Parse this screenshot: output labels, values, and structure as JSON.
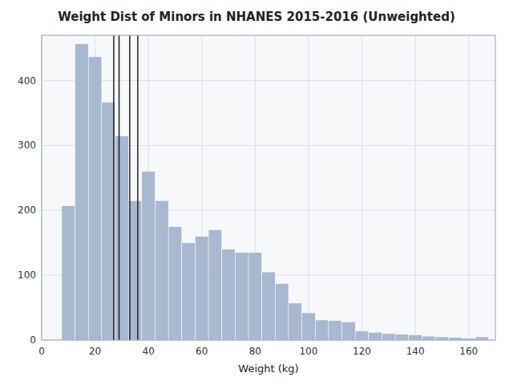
{
  "chart_data": {
    "type": "histogram",
    "title": "Weight Dist of Minors in NHANES 2015-2016 (Unweighted)",
    "xlabel": "Weight (kg)",
    "bins": [
      2.5,
      7.5,
      12.5,
      17.5,
      22.5,
      27.5,
      32.5,
      37.5,
      42.5,
      47.5,
      52.5,
      57.5,
      62.5,
      67.5,
      72.5,
      77.5,
      82.5,
      87.5,
      92.5,
      97.5,
      102.5,
      107.5,
      112.5,
      117.5,
      122.5,
      127.5,
      132.5,
      137.5,
      142.5,
      147.5,
      152.5,
      157.5,
      162.5,
      167.5
    ],
    "values": [
      0,
      207,
      457,
      437,
      367,
      315,
      215,
      260,
      215,
      175,
      150,
      160,
      170,
      140,
      135,
      135,
      105,
      87,
      57,
      42,
      31,
      30,
      28,
      14,
      12,
      10,
      9,
      8,
      6,
      5,
      4,
      3,
      5
    ],
    "color": "#a8b8d0",
    "vlines": [
      27,
      29,
      33,
      36
    ],
    "xlim": [
      0,
      170
    ],
    "ylim": [
      0,
      470
    ],
    "xticks": [
      0,
      20,
      40,
      60,
      80,
      100,
      120,
      140,
      160
    ],
    "yticks": [
      0,
      100,
      200,
      300,
      400
    ],
    "grid": true
  }
}
